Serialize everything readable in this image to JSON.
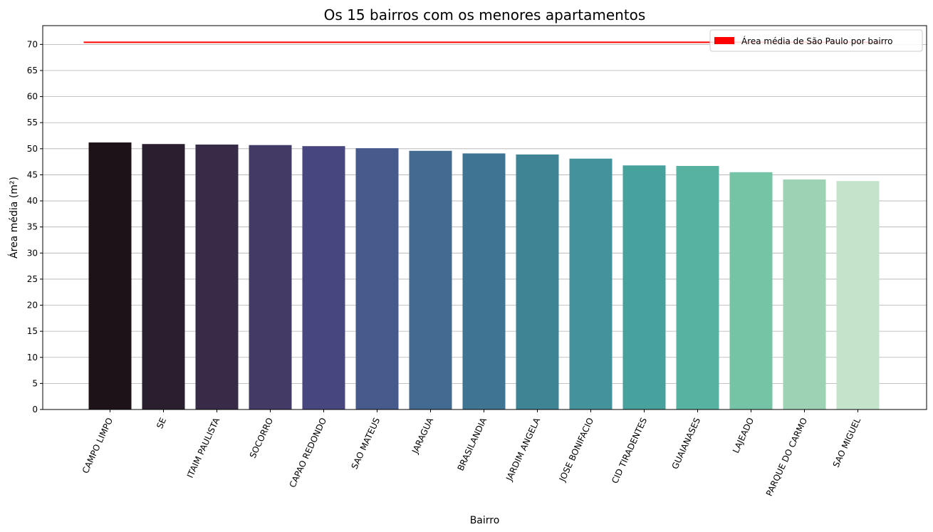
{
  "chart_data": {
    "type": "bar",
    "title": "Os 15 bairros com os menores apartamentos",
    "xlabel": "Bairro",
    "ylabel": "Área média (m²)",
    "categories": [
      "CAMPO LIMPO",
      "SE",
      "ITAIM PAULISTA",
      "SOCORRO",
      "CAPAO REDONDO",
      "SAO MATEUS",
      "JARAGUA",
      "BRASILANDIA",
      "JARDIM ANGELA",
      "JOSE BONIFACIO",
      "CID TIRADENTES",
      "GUAIANASES",
      "LAJEADO",
      "PARQUE DO CARMO",
      "SAO MIGUEL"
    ],
    "values": [
      51.2,
      50.9,
      50.8,
      50.7,
      50.5,
      50.1,
      49.6,
      49.1,
      48.9,
      48.1,
      46.8,
      46.7,
      45.5,
      44.1,
      43.8
    ],
    "colors": [
      "#1e1219",
      "#2a1f2e",
      "#372b48",
      "#433a66",
      "#47467f",
      "#465a8b",
      "#436a91",
      "#3f7592",
      "#3e8495",
      "#44929b",
      "#47a29d",
      "#58b2a1",
      "#76c4a6",
      "#9dd3b4",
      "#c3e3cb"
    ],
    "reference_line": {
      "value": 70.4,
      "color": "#ff0000",
      "label": "Área média de São Paulo por bairro"
    },
    "ylim": [
      0,
      73.6
    ],
    "yticks": [
      0,
      5,
      10,
      15,
      20,
      25,
      30,
      35,
      40,
      45,
      50,
      55,
      60,
      65,
      70
    ],
    "grid": "y",
    "legend_position": "top-right"
  }
}
